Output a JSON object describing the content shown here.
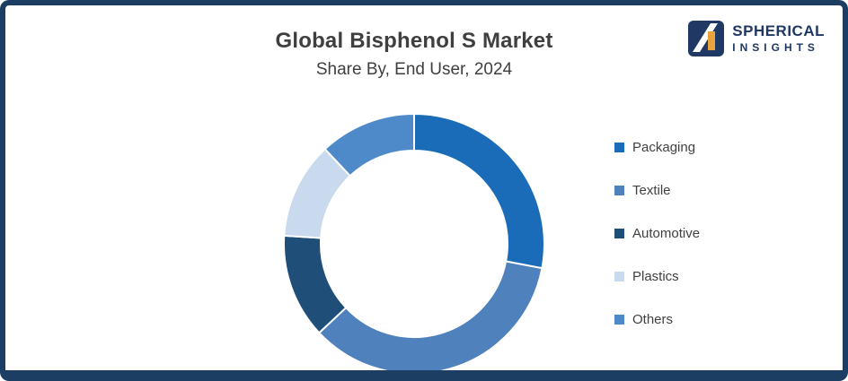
{
  "header": {
    "title": "Global Bisphenol S Market",
    "subtitle": "Share By, End User, 2024"
  },
  "logo": {
    "line1": "SPHERICAL",
    "line2": "INSIGHTS",
    "navy": "#1f3864",
    "orange": "#e8a33d"
  },
  "chart_data": {
    "type": "pie",
    "variant": "donut",
    "title": "Global Bisphenol S Market",
    "subtitle": "Share By, End User, 2024",
    "categories": [
      "Packaging",
      "Textile",
      "Automotive",
      "Plastics",
      "Others"
    ],
    "values": [
      28,
      35,
      13,
      12,
      12
    ],
    "colors": [
      "#1b6cb8",
      "#4f81bd",
      "#1f4e79",
      "#c9d9ee",
      "#4e8ac9"
    ],
    "start_angle_deg": 0,
    "direction": "clockwise",
    "legend_position": "right",
    "data_labels": "none"
  }
}
